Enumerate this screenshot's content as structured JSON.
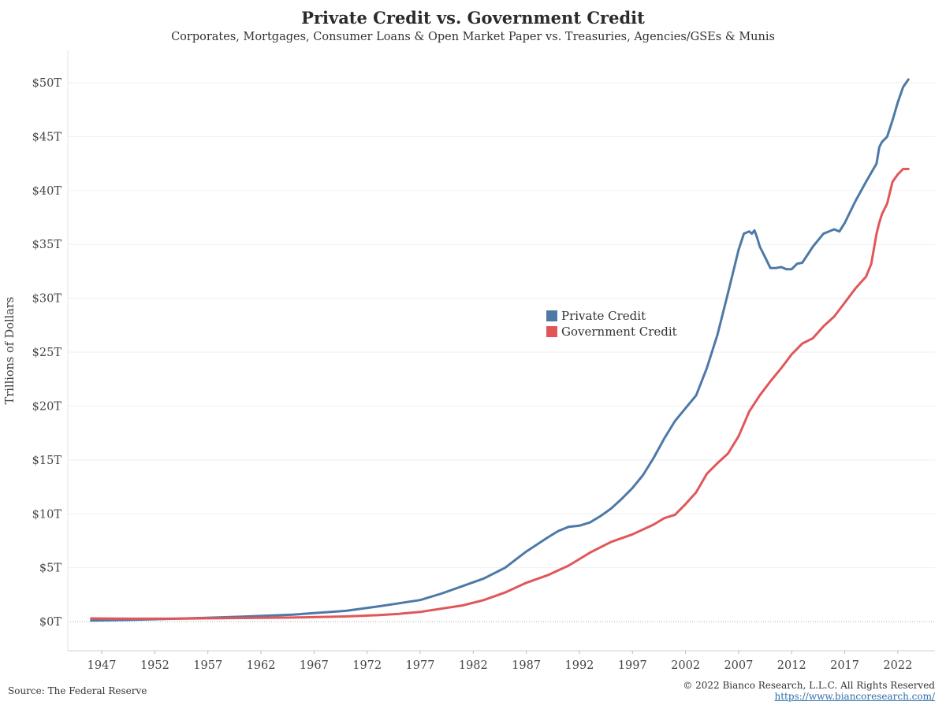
{
  "header": {
    "title": "Private Credit vs. Government Credit",
    "subtitle": "Corporates, Mortgages, Consumer Loans & Open Market Paper vs. Treasuries, Agencies/GSEs & Munis"
  },
  "footer": {
    "source": "Source: The Federal Reserve",
    "copyright": "© 2022 Bianco Research, L.L.C. All Rights Reserved",
    "url": "https://www.biancoresearch.com/"
  },
  "colors": {
    "private": "#4e79a7",
    "government": "#e15759"
  },
  "chart_data": {
    "type": "line",
    "ylabel": "Trillions of Dollars",
    "ylim": [
      -2.7,
      53
    ],
    "xlim": [
      1943.8,
      2025.5
    ],
    "y_ticks": [
      0,
      5,
      10,
      15,
      20,
      25,
      30,
      35,
      40,
      45,
      50
    ],
    "y_tick_labels": [
      "$0T",
      "$5T",
      "$10T",
      "$15T",
      "$20T",
      "$25T",
      "$30T",
      "$35T",
      "$40T",
      "$45T",
      "$50T"
    ],
    "x_ticks": [
      1947,
      1952,
      1957,
      1962,
      1967,
      1972,
      1977,
      1982,
      1987,
      1992,
      1997,
      2002,
      2007,
      2012,
      2017,
      2022
    ],
    "x_tick_labels": [
      "1947",
      "1952",
      "1957",
      "1962",
      "1967",
      "1972",
      "1977",
      "1982",
      "1987",
      "1992",
      "1997",
      "2002",
      "2007",
      "2012",
      "2017",
      "2022"
    ],
    "grid": true,
    "legend_position": "center",
    "series": [
      {
        "name": "Private Credit",
        "color": "#4e79a7",
        "x": [
          1946,
          1950,
          1955,
          1960,
          1965,
          1970,
          1973,
          1975,
          1977,
          1979,
          1981,
          1983,
          1985,
          1987,
          1989,
          1990,
          1991,
          1992,
          1993,
          1994,
          1995,
          1996,
          1997,
          1998,
          1999,
          2000,
          2001,
          2002,
          2003,
          2004,
          2005,
          2006,
          2007,
          2007.5,
          2008,
          2008.25,
          2008.5,
          2008.75,
          2009,
          2009.5,
          2010,
          2010.5,
          2011,
          2011.5,
          2012,
          2012.5,
          2013,
          2014,
          2015,
          2016,
          2016.5,
          2017,
          2018,
          2019,
          2020,
          2020.25,
          2020.5,
          2021,
          2021.5,
          2022,
          2022.5,
          2023
        ],
        "values": [
          0.1,
          0.17,
          0.3,
          0.45,
          0.65,
          1.0,
          1.4,
          1.7,
          2.0,
          2.6,
          3.3,
          4.0,
          5.0,
          6.5,
          7.8,
          8.4,
          8.8,
          8.9,
          9.2,
          9.8,
          10.5,
          11.4,
          12.4,
          13.6,
          15.2,
          17.0,
          18.6,
          19.8,
          21.0,
          23.5,
          26.6,
          30.5,
          34.5,
          36.0,
          36.2,
          36.0,
          36.3,
          35.6,
          34.8,
          33.8,
          32.8,
          32.8,
          32.9,
          32.7,
          32.7,
          33.2,
          33.3,
          34.8,
          36.0,
          36.4,
          36.2,
          37.0,
          39.0,
          40.8,
          42.5,
          44.0,
          44.5,
          45.0,
          46.5,
          48.2,
          49.6,
          50.3
        ]
      },
      {
        "name": "Government Credit",
        "color": "#e15759",
        "x": [
          1946,
          1950,
          1955,
          1960,
          1965,
          1970,
          1973,
          1975,
          1977,
          1979,
          1981,
          1983,
          1985,
          1987,
          1989,
          1991,
          1993,
          1995,
          1997,
          1999,
          2000,
          2001,
          2002,
          2003,
          2004,
          2005,
          2006,
          2007,
          2008,
          2009,
          2010,
          2011,
          2012,
          2013,
          2014,
          2015,
          2016,
          2017,
          2018,
          2019,
          2019.5,
          2020,
          2020.25,
          2020.5,
          2021,
          2021.5,
          2022,
          2022.5,
          2023
        ],
        "values": [
          0.3,
          0.27,
          0.28,
          0.33,
          0.38,
          0.48,
          0.6,
          0.72,
          0.9,
          1.2,
          1.5,
          2.0,
          2.7,
          3.6,
          4.3,
          5.2,
          6.4,
          7.4,
          8.1,
          9.0,
          9.6,
          9.9,
          10.9,
          12.0,
          13.7,
          14.7,
          15.6,
          17.2,
          19.5,
          21.0,
          22.3,
          23.5,
          24.8,
          25.8,
          26.3,
          27.4,
          28.3,
          29.6,
          30.9,
          32.0,
          33.2,
          36.0,
          37.0,
          37.8,
          38.8,
          40.8,
          41.5,
          42.0,
          42.0
        ]
      }
    ]
  }
}
